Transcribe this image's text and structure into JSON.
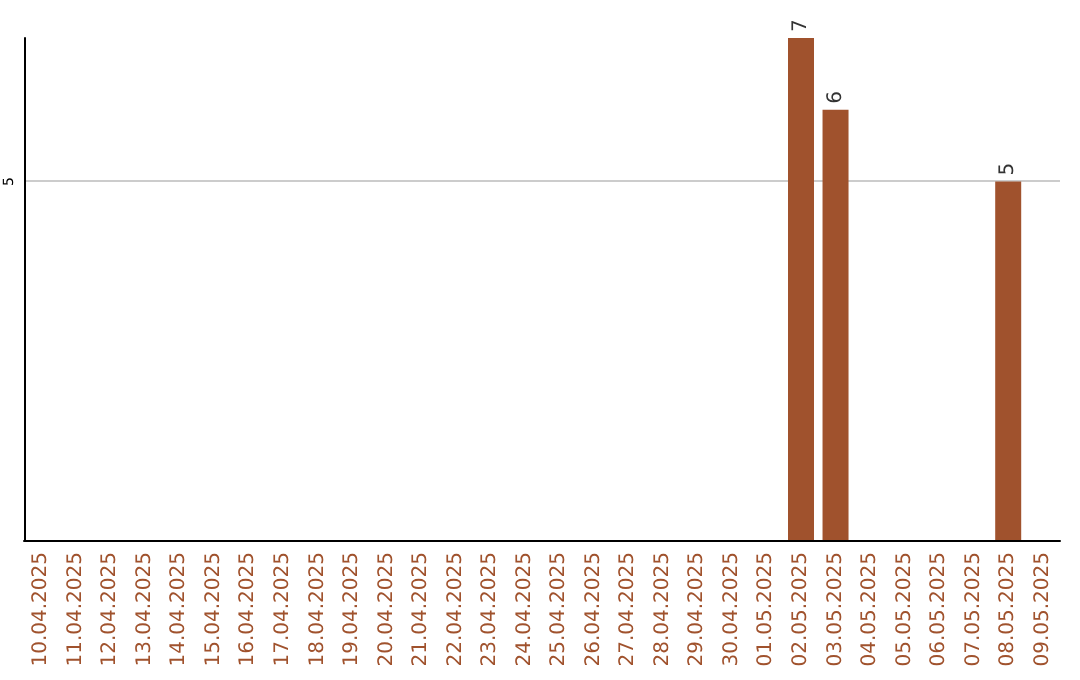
{
  "chart_data": {
    "type": "bar",
    "categories": [
      "10.04.2025",
      "11.04.2025",
      "12.04.2025",
      "13.04.2025",
      "14.04.2025",
      "15.04.2025",
      "16.04.2025",
      "17.04.2025",
      "18.04.2025",
      "19.04.2025",
      "20.04.2025",
      "21.04.2025",
      "22.04.2025",
      "23.04.2025",
      "24.04.2025",
      "25.04.2025",
      "26.04.2025",
      "27.04.2025",
      "28.04.2025",
      "29.04.2025",
      "30.04.2025",
      "01.05.2025",
      "02.05.2025",
      "03.05.2025",
      "04.05.2025",
      "05.05.2025",
      "06.05.2025",
      "07.05.2025",
      "08.05.2025",
      "09.05.2025"
    ],
    "values": [
      null,
      null,
      null,
      null,
      null,
      null,
      null,
      null,
      null,
      null,
      null,
      null,
      null,
      null,
      null,
      null,
      null,
      null,
      null,
      null,
      null,
      null,
      7,
      6,
      null,
      null,
      null,
      null,
      5,
      null
    ],
    "color": "#a0522d",
    "ylim": [
      0,
      7
    ],
    "yticks": [
      5
    ],
    "grid": "y",
    "data_labels": true
  }
}
